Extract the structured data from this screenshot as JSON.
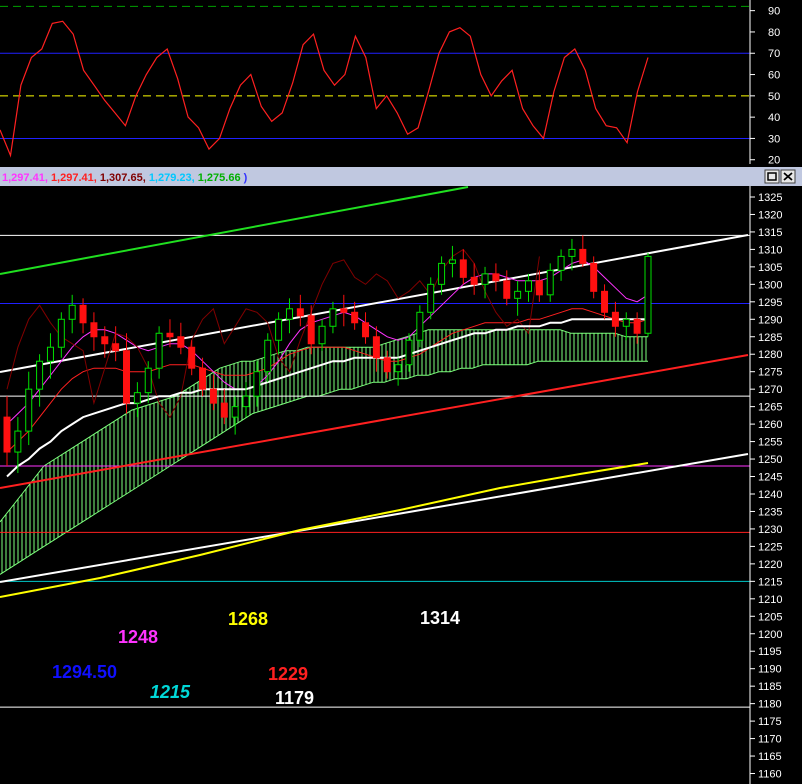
{
  "header": {
    "values": [
      {
        "text": "1,297.41",
        "color": "#ff33ff"
      },
      {
        "text": "1,297.41",
        "color": "#ff2020"
      },
      {
        "text": "1,307.65",
        "color": "#800000"
      },
      {
        "text": "1,279.23",
        "color": "#00c8ff"
      },
      {
        "text": "1,275.66",
        "color": "#00b000"
      }
    ],
    "separator": ", ",
    "trailing": ")",
    "bar_color": "#c0c8e0"
  },
  "window_buttons": [
    {
      "name": "restore-button",
      "icon": "restore-icon"
    },
    {
      "name": "close-button",
      "icon": "close-icon"
    }
  ],
  "colors": {
    "background": "#000000",
    "axis_text": "#ffffff",
    "rsi_line": "#ff2020",
    "up_candle": "#00e000",
    "down_candle": "#ff1010",
    "cloud": "#7cff7c",
    "tenkan": "#ff33ff",
    "kijun": "#ff2020",
    "chikou": "#800000",
    "ma_fast": "#ffffff",
    "trend_green": "#20e020",
    "trend_red": "#ff2020",
    "trend_white": "#ffffff",
    "trend_yellow": "#ffff00"
  },
  "chart_data": [
    {
      "type": "line",
      "name": "rsi-panel",
      "ylim": [
        18,
        95
      ],
      "yticks": [
        20,
        30,
        40,
        50,
        60,
        70,
        80,
        90
      ],
      "hlines": [
        {
          "y": 92,
          "color": "#00a000",
          "dash": true
        },
        {
          "y": 70,
          "color": "#2020ff",
          "dash": false
        },
        {
          "y": 50,
          "color": "#ffff00",
          "dash": true
        },
        {
          "y": 30,
          "color": "#2020ff",
          "dash": false
        }
      ],
      "series": [
        {
          "values": [
            34,
            22,
            55,
            68,
            72,
            84,
            85,
            79,
            62,
            55,
            48,
            42,
            36,
            50,
            60,
            68,
            72,
            58,
            40,
            35,
            25,
            30,
            44,
            55,
            60,
            45,
            38,
            42,
            56,
            74,
            79,
            62,
            55,
            60,
            78,
            68,
            44,
            50,
            42,
            32,
            35,
            52,
            70,
            80,
            82,
            78,
            60,
            50,
            57,
            62,
            44,
            36,
            30,
            52,
            68,
            72,
            62,
            44,
            36,
            35,
            28,
            52,
            68
          ]
        }
      ]
    },
    {
      "type": "line",
      "name": "price-panel",
      "ylim": [
        1157,
        1327
      ],
      "yticks": [
        1160,
        1165,
        1170,
        1175,
        1180,
        1185,
        1190,
        1195,
        1200,
        1205,
        1210,
        1215,
        1220,
        1225,
        1230,
        1235,
        1240,
        1245,
        1250,
        1255,
        1260,
        1265,
        1270,
        1275,
        1280,
        1285,
        1290,
        1295,
        1300,
        1305,
        1310,
        1315,
        1320,
        1325
      ],
      "hlines": [
        {
          "y": 1314,
          "color": "#ffffff"
        },
        {
          "y": 1294.5,
          "color": "#2020ff"
        },
        {
          "y": 1268,
          "color": "#ffffff"
        },
        {
          "y": 1248,
          "color": "#ff33ff"
        },
        {
          "y": 1229,
          "color": "#ff2020"
        },
        {
          "y": 1215,
          "color": "#00c8c8"
        },
        {
          "y": 1179,
          "color": "#ffffff"
        }
      ],
      "candles_ohlc": [
        [
          1262,
          1268,
          1248,
          1252
        ],
        [
          1252,
          1262,
          1246,
          1258
        ],
        [
          1258,
          1275,
          1254,
          1270
        ],
        [
          1270,
          1280,
          1265,
          1278
        ],
        [
          1278,
          1286,
          1273,
          1282
        ],
        [
          1282,
          1292,
          1279,
          1290
        ],
        [
          1290,
          1297,
          1286,
          1294
        ],
        [
          1294,
          1296,
          1286,
          1289
        ],
        [
          1289,
          1292,
          1281,
          1285
        ],
        [
          1285,
          1288,
          1279,
          1283
        ],
        [
          1283,
          1288,
          1278,
          1281
        ],
        [
          1281,
          1286,
          1263,
          1266
        ],
        [
          1266,
          1272,
          1262,
          1269
        ],
        [
          1269,
          1278,
          1266,
          1276
        ],
        [
          1276,
          1288,
          1273,
          1286
        ],
        [
          1286,
          1290,
          1282,
          1285
        ],
        [
          1285,
          1289,
          1280,
          1282
        ],
        [
          1282,
          1284,
          1274,
          1276
        ],
        [
          1276,
          1279,
          1268,
          1270
        ],
        [
          1270,
          1274,
          1264,
          1266
        ],
        [
          1266,
          1270,
          1260,
          1262
        ],
        [
          1262,
          1268,
          1257,
          1265
        ],
        [
          1265,
          1272,
          1262,
          1268
        ],
        [
          1268,
          1278,
          1265,
          1275
        ],
        [
          1275,
          1286,
          1272,
          1284
        ],
        [
          1284,
          1292,
          1280,
          1290
        ],
        [
          1290,
          1296,
          1286,
          1293
        ],
        [
          1293,
          1297,
          1288,
          1291
        ],
        [
          1291,
          1294,
          1280,
          1283
        ],
        [
          1283,
          1290,
          1281,
          1288
        ],
        [
          1288,
          1295,
          1286,
          1293
        ],
        [
          1293,
          1297,
          1288,
          1292
        ],
        [
          1292,
          1295,
          1287,
          1289
        ],
        [
          1289,
          1292,
          1283,
          1285
        ],
        [
          1285,
          1288,
          1275,
          1279
        ],
        [
          1279,
          1281,
          1273,
          1275
        ],
        [
          1275,
          1279,
          1271,
          1277
        ],
        [
          1277,
          1286,
          1275,
          1284
        ],
        [
          1284,
          1294,
          1282,
          1292
        ],
        [
          1292,
          1302,
          1290,
          1300
        ],
        [
          1300,
          1308,
          1297,
          1306
        ],
        [
          1306,
          1311,
          1302,
          1307
        ],
        [
          1307,
          1310,
          1300,
          1302
        ],
        [
          1302,
          1306,
          1297,
          1300
        ],
        [
          1300,
          1305,
          1296,
          1303
        ],
        [
          1303,
          1306,
          1298,
          1301
        ],
        [
          1301,
          1304,
          1294,
          1296
        ],
        [
          1296,
          1301,
          1291,
          1298
        ],
        [
          1298,
          1303,
          1295,
          1301
        ],
        [
          1301,
          1304,
          1295,
          1297
        ],
        [
          1297,
          1306,
          1295,
          1304
        ],
        [
          1304,
          1310,
          1301,
          1308
        ],
        [
          1308,
          1313,
          1304,
          1310
        ],
        [
          1310,
          1314,
          1305,
          1306
        ],
        [
          1306,
          1308,
          1296,
          1298
        ],
        [
          1298,
          1300,
          1290,
          1292
        ],
        [
          1292,
          1295,
          1285,
          1288
        ],
        [
          1288,
          1292,
          1284,
          1290
        ],
        [
          1290,
          1292,
          1283,
          1286
        ],
        [
          1286,
          1309,
          1285,
          1308
        ]
      ],
      "series": [
        {
          "role": "tenkan",
          "values": [
            1260,
            1263,
            1266,
            1270,
            1274,
            1278,
            1282,
            1285,
            1287,
            1287,
            1286,
            1284,
            1282,
            1281,
            1282,
            1283,
            1283,
            1281,
            1278,
            1275,
            1272,
            1270,
            1270,
            1271,
            1274,
            1278,
            1283,
            1287,
            1289,
            1290,
            1291,
            1292,
            1291,
            1289,
            1287,
            1285,
            1284,
            1285,
            1288,
            1291,
            1294,
            1297,
            1300,
            1302,
            1303,
            1303,
            1302,
            1301,
            1301,
            1301,
            1302,
            1304,
            1306,
            1307,
            1305,
            1302,
            1299,
            1296,
            1295,
            1297
          ]
        },
        {
          "role": "kijun",
          "values": [
            1252,
            1255,
            1258,
            1262,
            1266,
            1270,
            1273,
            1275,
            1276,
            1276,
            1276,
            1275,
            1275,
            1275,
            1276,
            1277,
            1277,
            1277,
            1276,
            1275,
            1274,
            1274,
            1274,
            1275,
            1276,
            1278,
            1280,
            1281,
            1282,
            1282,
            1282,
            1282,
            1281,
            1280,
            1279,
            1278,
            1278,
            1279,
            1280,
            1282,
            1284,
            1286,
            1287,
            1288,
            1289,
            1289,
            1289,
            1289,
            1290,
            1290,
            1291,
            1292,
            1293,
            1293,
            1292,
            1291,
            1290,
            1289,
            1289,
            1290
          ]
        },
        {
          "role": "chikou",
          "values": [
            1270,
            1282,
            1290,
            1294,
            1289,
            1285,
            1283,
            1281,
            1266,
            1276,
            1286,
            1285,
            1282,
            1276,
            1266,
            1262,
            1268,
            1284,
            1290,
            1293,
            1283,
            1288,
            1293,
            1292,
            1289,
            1279,
            1275,
            1284,
            1292,
            1300,
            1306,
            1307,
            1302,
            1300,
            1303,
            1301,
            1296,
            1298,
            1301,
            1297,
            1304,
            1308,
            1310,
            1306,
            1298,
            1292,
            1288,
            1290,
            1286,
            1308
          ]
        },
        {
          "role": "ma",
          "values": [
            1245,
            1248,
            1250,
            1253,
            1255,
            1258,
            1260,
            1262,
            1263,
            1264,
            1265,
            1266,
            1266,
            1267,
            1268,
            1268,
            1269,
            1269,
            1270,
            1270,
            1270,
            1270,
            1270,
            1271,
            1272,
            1273,
            1274,
            1275,
            1276,
            1277,
            1278,
            1278,
            1279,
            1279,
            1279,
            1279,
            1279,
            1280,
            1281,
            1282,
            1283,
            1284,
            1285,
            1286,
            1286,
            1287,
            1287,
            1288,
            1288,
            1288,
            1289,
            1289,
            1290,
            1290,
            1290,
            1290,
            1290,
            1290,
            1290,
            1290
          ]
        },
        {
          "role": "span_a",
          "values": [
            1232,
            1236,
            1240,
            1244,
            1248,
            1250,
            1252,
            1254,
            1256,
            1258,
            1260,
            1262,
            1264,
            1265,
            1266,
            1267,
            1268,
            1270,
            1272,
            1274,
            1276,
            1277,
            1278,
            1278,
            1279,
            1280,
            1281,
            1281,
            1282,
            1282,
            1282,
            1282,
            1282,
            1282,
            1282,
            1283,
            1284,
            1285,
            1286,
            1287,
            1287,
            1287,
            1287,
            1287,
            1287,
            1287,
            1287,
            1287,
            1287,
            1287,
            1287,
            1287,
            1286,
            1286,
            1286,
            1286,
            1286,
            1285,
            1285,
            1285
          ]
        },
        {
          "role": "span_b",
          "values": [
            1217,
            1219,
            1221,
            1223,
            1225,
            1227,
            1229,
            1231,
            1233,
            1235,
            1237,
            1239,
            1241,
            1243,
            1245,
            1247,
            1249,
            1251,
            1253,
            1255,
            1257,
            1259,
            1261,
            1263,
            1264,
            1265,
            1266,
            1267,
            1268,
            1268,
            1269,
            1270,
            1270,
            1271,
            1272,
            1272,
            1273,
            1273,
            1274,
            1274,
            1275,
            1275,
            1276,
            1276,
            1277,
            1277,
            1277,
            1277,
            1277,
            1278,
            1278,
            1278,
            1278,
            1278,
            1278,
            1278,
            1278,
            1278,
            1278,
            1278
          ]
        }
      ],
      "annotations": [
        {
          "text": "1268",
          "color": "#ffff00",
          "italic": false
        },
        {
          "text": "1314",
          "color": "#ffffff",
          "italic": false
        },
        {
          "text": "1248",
          "color": "#ff33ff",
          "italic": false
        },
        {
          "text": "1294.50",
          "color": "#1010ff",
          "italic": false
        },
        {
          "text": "1229",
          "color": "#ff2020",
          "italic": false
        },
        {
          "text": "1215",
          "color": "#00d8d8",
          "italic": true
        },
        {
          "text": "1179",
          "color": "#ffffff",
          "italic": false
        }
      ]
    }
  ]
}
